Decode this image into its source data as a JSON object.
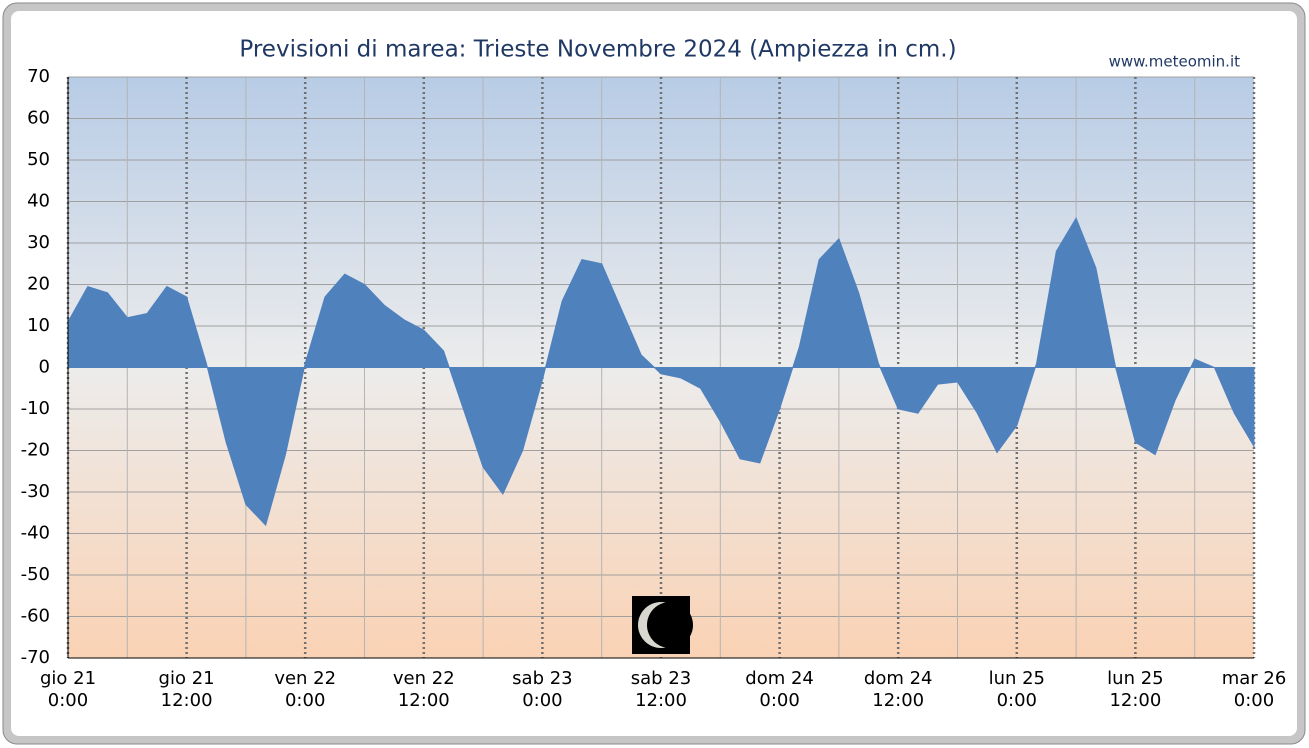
{
  "chart_data": {
    "type": "area",
    "title": "Previsioni di marea: Trieste Novembre 2024 (Ampiezza in cm.)",
    "source": "www.meteomin.it",
    "color": "#4f81bd",
    "x": [
      "2024-11-21T00:00",
      "2024-11-21T02:00",
      "2024-11-21T04:00",
      "2024-11-21T06:00",
      "2024-11-21T08:00",
      "2024-11-21T10:00",
      "2024-11-21T12:00",
      "2024-11-21T14:00",
      "2024-11-21T16:00",
      "2024-11-21T18:00",
      "2024-11-21T20:00",
      "2024-11-21T22:00",
      "2024-11-22T00:00",
      "2024-11-22T02:00",
      "2024-11-22T04:00",
      "2024-11-22T06:00",
      "2024-11-22T08:00",
      "2024-11-22T10:00",
      "2024-11-22T12:00",
      "2024-11-22T14:00",
      "2024-11-22T16:00",
      "2024-11-22T18:00",
      "2024-11-22T20:00",
      "2024-11-22T22:00",
      "2024-11-23T00:00",
      "2024-11-23T02:00",
      "2024-11-23T04:00",
      "2024-11-23T06:00",
      "2024-11-23T08:00",
      "2024-11-23T10:00",
      "2024-11-23T12:00",
      "2024-11-23T14:00",
      "2024-11-23T16:00",
      "2024-11-23T18:00",
      "2024-11-23T20:00",
      "2024-11-23T22:00",
      "2024-11-24T00:00",
      "2024-11-24T02:00",
      "2024-11-24T04:00",
      "2024-11-24T06:00",
      "2024-11-24T08:00",
      "2024-11-24T10:00",
      "2024-11-24T12:00",
      "2024-11-24T14:00",
      "2024-11-24T16:00",
      "2024-11-24T18:00",
      "2024-11-24T20:00",
      "2024-11-24T22:00",
      "2024-11-25T00:00",
      "2024-11-25T02:00",
      "2024-11-25T04:00",
      "2024-11-25T06:00",
      "2024-11-25T08:00",
      "2024-11-25T10:00",
      "2024-11-25T12:00",
      "2024-11-25T14:00",
      "2024-11-25T16:00",
      "2024-11-25T18:00",
      "2024-11-25T20:00",
      "2024-11-25T22:00",
      "2024-11-26T00:00"
    ],
    "values": [
      11,
      19.5,
      18,
      12,
      13,
      19.5,
      17,
      1,
      -18,
      -33,
      -38,
      -21,
      1,
      17,
      22.5,
      20,
      15,
      11.5,
      9,
      4,
      -10,
      -24,
      -30.5,
      -20,
      -3,
      16,
      26,
      25,
      14,
      3,
      -1.5,
      -2.5,
      -5,
      -13,
      -22,
      -23,
      -10,
      5,
      26,
      31,
      18,
      1,
      -10,
      -11,
      -4,
      -3.5,
      -11,
      -20.5,
      -14,
      1,
      28,
      36,
      24,
      0,
      -18,
      -21,
      -8,
      2,
      0,
      -11,
      -19
    ],
    "xlim": [
      "2024-11-21T00:00",
      "2024-11-26T00:00"
    ],
    "xticks": [
      {
        "value": "2024-11-21T00:00",
        "label": [
          "gio 21",
          "0:00"
        ]
      },
      {
        "value": "2024-11-21T12:00",
        "label": [
          "gio 21",
          "12:00"
        ]
      },
      {
        "value": "2024-11-22T00:00",
        "label": [
          "ven 22",
          "0:00"
        ]
      },
      {
        "value": "2024-11-22T12:00",
        "label": [
          "ven 22",
          "12:00"
        ]
      },
      {
        "value": "2024-11-23T00:00",
        "label": [
          "sab 23",
          "0:00"
        ]
      },
      {
        "value": "2024-11-23T12:00",
        "label": [
          "sab 23",
          "12:00"
        ]
      },
      {
        "value": "2024-11-24T00:00",
        "label": [
          "dom 24",
          "0:00"
        ]
      },
      {
        "value": "2024-11-24T12:00",
        "label": [
          "dom 24",
          "12:00"
        ]
      },
      {
        "value": "2024-11-25T00:00",
        "label": [
          "lun 25",
          "0:00"
        ]
      },
      {
        "value": "2024-11-25T12:00",
        "label": [
          "lun 25",
          "12:00"
        ]
      },
      {
        "value": "2024-11-26T00:00",
        "label": [
          "mar 26",
          "0:00"
        ]
      }
    ],
    "ylim": [
      -70,
      70
    ],
    "yticks": [
      -70,
      -60,
      -50,
      -40,
      -30,
      -20,
      -10,
      0,
      10,
      20,
      30,
      40,
      50,
      60,
      70
    ],
    "grid": true
  }
}
